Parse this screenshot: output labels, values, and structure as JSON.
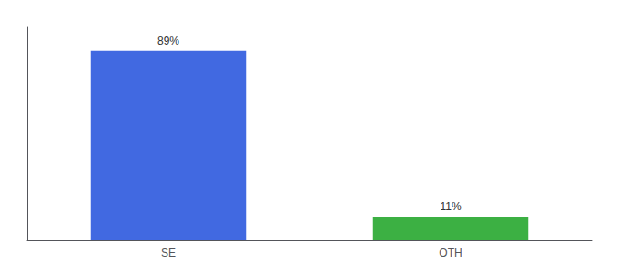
{
  "chart_data": {
    "type": "bar",
    "categories": [
      "SE",
      "OTH"
    ],
    "values": [
      89,
      11
    ],
    "colors": [
      "#4169e1",
      "#3cb043"
    ],
    "value_labels": [
      "89%",
      "11%"
    ],
    "data_labels": true,
    "ylim": [
      0,
      100
    ],
    "tick_labels": "x",
    "grid": false
  }
}
